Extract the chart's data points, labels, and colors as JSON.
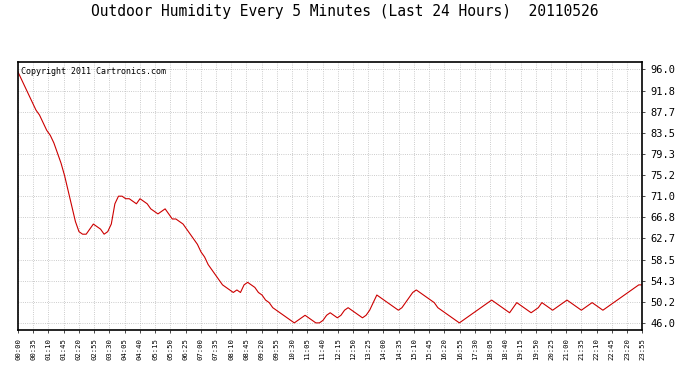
{
  "title": "Outdoor Humidity Every 5 Minutes (Last 24 Hours)  20110526",
  "copyright_text": "Copyright 2011 Cartronics.com",
  "line_color": "#cc0000",
  "background_color": "#ffffff",
  "grid_color": "#bbbbbb",
  "yticks": [
    46.0,
    50.2,
    54.3,
    58.5,
    62.7,
    66.8,
    71.0,
    75.2,
    79.3,
    83.5,
    87.7,
    91.8,
    96.0
  ],
  "ymin": 44.5,
  "ymax": 97.5,
  "x_labels": [
    "00:00",
    "00:35",
    "01:10",
    "01:45",
    "02:20",
    "02:55",
    "03:30",
    "04:05",
    "04:40",
    "05:15",
    "05:50",
    "06:25",
    "07:00",
    "07:35",
    "08:10",
    "08:45",
    "09:20",
    "09:55",
    "10:30",
    "11:05",
    "11:40",
    "12:15",
    "12:50",
    "13:25",
    "14:00",
    "14:35",
    "15:10",
    "15:45",
    "16:20",
    "16:55",
    "17:30",
    "18:05",
    "18:40",
    "19:15",
    "19:50",
    "20:25",
    "21:00",
    "21:35",
    "22:10",
    "22:45",
    "23:20",
    "23:55"
  ],
  "humidity_values": [
    95.5,
    94.0,
    92.5,
    91.0,
    89.5,
    88.0,
    87.0,
    85.5,
    84.0,
    83.0,
    81.5,
    79.5,
    77.5,
    75.0,
    72.0,
    69.0,
    66.0,
    64.0,
    63.5,
    63.5,
    64.5,
    65.5,
    65.0,
    64.5,
    63.5,
    64.0,
    65.5,
    69.5,
    71.0,
    71.0,
    70.5,
    70.5,
    70.0,
    69.5,
    70.5,
    70.0,
    69.5,
    68.5,
    68.0,
    67.5,
    68.0,
    68.5,
    67.5,
    66.5,
    66.5,
    66.0,
    65.5,
    64.5,
    63.5,
    62.5,
    61.5,
    60.0,
    59.0,
    57.5,
    56.5,
    55.5,
    54.5,
    53.5,
    53.0,
    52.5,
    52.0,
    52.5,
    52.0,
    53.5,
    54.0,
    53.5,
    53.0,
    52.0,
    51.5,
    50.5,
    50.0,
    49.0,
    48.5,
    48.0,
    47.5,
    47.0,
    46.5,
    46.0,
    46.5,
    47.0,
    47.5,
    47.0,
    46.5,
    46.0,
    46.0,
    46.5,
    47.5,
    48.0,
    47.5,
    47.0,
    47.5,
    48.5,
    49.0,
    48.5,
    48.0,
    47.5,
    47.0,
    47.5,
    48.5,
    50.0,
    51.5,
    51.0,
    50.5,
    50.0,
    49.5,
    49.0,
    48.5,
    49.0,
    50.0,
    51.0,
    52.0,
    52.5,
    52.0,
    51.5,
    51.0,
    50.5,
    50.0,
    49.0,
    48.5,
    48.0,
    47.5,
    47.0,
    46.5,
    46.0,
    46.5,
    47.0,
    47.5,
    48.0,
    48.5,
    49.0,
    49.5,
    50.0,
    50.5,
    50.0,
    49.5,
    49.0,
    48.5,
    48.0,
    49.0,
    50.0,
    49.5,
    49.0,
    48.5,
    48.0,
    48.5,
    49.0,
    50.0,
    49.5,
    49.0,
    48.5,
    49.0,
    49.5,
    50.0,
    50.5,
    50.0,
    49.5,
    49.0,
    48.5,
    49.0,
    49.5,
    50.0,
    49.5,
    49.0,
    48.5,
    49.0,
    49.5,
    50.0,
    50.5,
    51.0,
    51.5,
    52.0,
    52.5,
    53.0,
    53.5,
    53.5
  ]
}
